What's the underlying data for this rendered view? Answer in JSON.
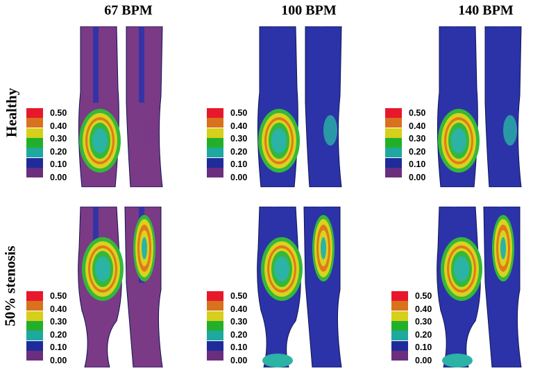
{
  "columns": [
    "67 BPM",
    "100 BPM",
    "140 BPM"
  ],
  "rows": [
    "Healthy",
    "50% stenosis"
  ],
  "legend": {
    "entries": [
      {
        "label": "0.50",
        "color": "#e8182c"
      },
      {
        "label": "0.40",
        "color": "#d8721c"
      },
      {
        "label": "0.30",
        "color": "#d6cf1b"
      },
      {
        "label": "0.20",
        "color": "#22b02a"
      },
      {
        "label": "0.10",
        "color": "#1ea8a0"
      },
      {
        "label": "0.10",
        "color": "#1f2b9a"
      },
      {
        "label": "0.00",
        "color": "#6b2e7e"
      }
    ]
  },
  "colors": {
    "base_blue": "#2c33a8",
    "low_purple": "#7a3a86",
    "teal": "#2bb3a6",
    "green": "#35b83a",
    "yellow": "#d9d21e",
    "orange": "#e07a1a",
    "red": "#e02020",
    "outline": "#0c1450"
  }
}
